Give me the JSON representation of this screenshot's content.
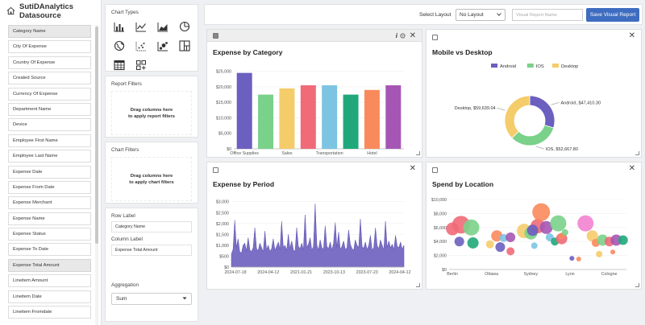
{
  "app": {
    "title": "SutiDAnalytics Datasource"
  },
  "fields": [
    {
      "label": "Category Name",
      "hl": true
    },
    {
      "label": "City Of Expense"
    },
    {
      "label": "Country Of Expense"
    },
    {
      "label": "Created Source"
    },
    {
      "label": "Currency Of Expense"
    },
    {
      "label": "Department Name"
    },
    {
      "label": "Device"
    },
    {
      "label": "Employee First Name"
    },
    {
      "label": "Employee Last Name"
    },
    {
      "label": "Expense Date"
    },
    {
      "label": "Expense From Date"
    },
    {
      "label": "Expense Merchant"
    },
    {
      "label": "Expense Name"
    },
    {
      "label": "Expense Status"
    },
    {
      "label": "Expense To Date"
    },
    {
      "label": "Expense Total Amount",
      "hl": true
    },
    {
      "label": "Lineitem Amount"
    },
    {
      "label": "Lineitem Date"
    },
    {
      "label": "Lineitem Fromdate"
    }
  ],
  "config": {
    "chart_types_title": "Chart Types",
    "chart_type_icons": [
      "bar-chart-icon",
      "line-chart-icon",
      "area-chart-icon",
      "pie-chart-icon",
      "globe-map-icon",
      "scatter-chart-icon",
      "bubble-chart-icon",
      "treemap-icon",
      "table-icon",
      "widget-grid-icon"
    ],
    "report_filters_title": "Report Filters",
    "report_filters_drop_l1": "Drag columns here",
    "report_filters_drop_l2": "to apply report filters",
    "chart_filters_title": "Chart Filters",
    "chart_filters_drop_l1": "Drag columns here",
    "chart_filters_drop_l2": "to apply chart filters",
    "row_label_title": "Row Label",
    "row_label_value": "Category Name",
    "column_label_title": "Column Label",
    "column_label_value": "Expense Total Amount",
    "aggregation_title": "Aggregation",
    "aggregation_value": "Sum"
  },
  "toolbar": {
    "select_layout_label": "Select Layout",
    "layout_value": "No Layout",
    "report_name_placeholder": "Visual Report Name",
    "save_label": "Save Visual Report"
  },
  "charts": {
    "category_title": "Expense by Category",
    "device_title": "Mobile vs Desktop",
    "period_title": "Expense by Period",
    "location_title": "Spend by Location"
  },
  "chart_data": [
    {
      "type": "bar",
      "title": "Expense by Category",
      "categories": [
        "Office Supplies",
        "",
        "Sales",
        "",
        "Transportation",
        "",
        "Hotel",
        ""
      ],
      "tick_labels": [
        "Office Supplies",
        "Sales",
        "Transportation",
        "Hotel"
      ],
      "values": [
        24500,
        17500,
        19500,
        20500,
        20500,
        17500,
        19000,
        20500
      ],
      "colors": [
        "#6b5fc0",
        "#7ad18a",
        "#f5cc6a",
        "#f06a78",
        "#7cc4e2",
        "#20a87a",
        "#f98a5c",
        "#a556b4"
      ],
      "y_ticks": [
        "$0",
        "$5,000",
        "$10,000",
        "$15,000",
        "$20,000",
        "$25,000"
      ],
      "ylim": [
        0,
        27000
      ]
    },
    {
      "type": "pie",
      "title": "Mobile vs Desktop",
      "slices": [
        {
          "name": "Android",
          "value": 47410.3,
          "label": "Android, $47,410.30",
          "color": "#6b5fc0"
        },
        {
          "name": "IOS",
          "value": 52667.8,
          "label": "IOS, $52,667.80",
          "color": "#7ad18a"
        },
        {
          "name": "Desktop",
          "value": 59639.04,
          "label": "Desktop, $59,639.04",
          "color": "#f5cc6a"
        }
      ],
      "legend_placement": "top"
    },
    {
      "type": "area",
      "title": "Expense by Period",
      "x_ticks": [
        "2024-07-18",
        "2024-04-12",
        "2021-01-21",
        "2023-10-13",
        "2023-07-23",
        "2024-04-12"
      ],
      "y_ticks": [
        "$0",
        "$500",
        "$1,000",
        "$1,500",
        "$2,000",
        "$2,500",
        "$3,000"
      ],
      "ylim": [
        0,
        3100
      ],
      "color": "#7a6fc4",
      "values": [
        600,
        820,
        2150,
        900,
        1300,
        700,
        650,
        1000,
        1100,
        750,
        1350,
        800,
        700,
        900,
        1800,
        850,
        750,
        1100,
        900,
        700,
        1650,
        800,
        1000,
        720,
        850,
        1300,
        780,
        950,
        1150,
        800,
        2100,
        900,
        1000,
        760,
        1500,
        850,
        1200,
        800,
        720,
        1800,
        950,
        850,
        1100,
        780,
        2400,
        900,
        1050,
        1350,
        780,
        950,
        2900,
        1000,
        780,
        1250,
        900,
        820,
        1900,
        950,
        850,
        1150,
        780,
        1100,
        2050,
        900,
        1600,
        820,
        950,
        1200,
        800,
        900,
        1700,
        1050,
        850,
        780,
        1250,
        1000,
        900,
        2200,
        950,
        860,
        1150,
        800,
        1000,
        1450,
        780,
        900,
        1800,
        980,
        840,
        1250,
        1000,
        800,
        2100,
        900,
        1200,
        880,
        1050,
        800,
        1450,
        950,
        900,
        1150,
        820,
        1000
      ]
    },
    {
      "type": "scatter",
      "title": "Spend by Location",
      "x_ticks": [
        "Berlin",
        "Ottawa",
        "Sydney",
        "Lyon",
        "Cologne"
      ],
      "y_ticks": [
        "$0",
        "$2,000",
        "$4,000",
        "$6,000",
        "$8,000",
        "$10,000"
      ],
      "ylim": [
        0,
        10000
      ],
      "points": [
        {
          "x": 0.1,
          "y": 5800,
          "r": 8,
          "c": "#f06a78"
        },
        {
          "x": 0.35,
          "y": 6400,
          "r": 11,
          "c": "#f06a78"
        },
        {
          "x": 0.65,
          "y": 6000,
          "r": 10,
          "c": "#7ad18a"
        },
        {
          "x": 0.3,
          "y": 4000,
          "r": 6,
          "c": "#6b5fc0"
        },
        {
          "x": 0.7,
          "y": 3800,
          "r": 7,
          "c": "#20a87a"
        },
        {
          "x": 1.4,
          "y": 4800,
          "r": 7,
          "c": "#f98a5c"
        },
        {
          "x": 1.6,
          "y": 4500,
          "r": 5,
          "c": "#7cc4e2"
        },
        {
          "x": 1.8,
          "y": 4600,
          "r": 6,
          "c": "#a556b4"
        },
        {
          "x": 1.2,
          "y": 3600,
          "r": 5,
          "c": "#f5cc6a"
        },
        {
          "x": 1.5,
          "y": 3200,
          "r": 6,
          "c": "#6b5fc0"
        },
        {
          "x": 1.8,
          "y": 2600,
          "r": 5,
          "c": "#f06a78"
        },
        {
          "x": 2.2,
          "y": 5500,
          "r": 9,
          "c": "#f5cc6a"
        },
        {
          "x": 2.4,
          "y": 5200,
          "r": 8,
          "c": "#7ad18a"
        },
        {
          "x": 2.5,
          "y": 3400,
          "r": 4,
          "c": "#7cc4e2"
        },
        {
          "x": 2.6,
          "y": 6200,
          "r": 9,
          "c": "#f06a78"
        },
        {
          "x": 2.7,
          "y": 8200,
          "r": 11,
          "c": "#f98a5c"
        },
        {
          "x": 2.85,
          "y": 6000,
          "r": 8,
          "c": "#a556b4"
        },
        {
          "x": 2.45,
          "y": 5600,
          "r": 7,
          "c": "#6b5fc0"
        },
        {
          "x": 2.95,
          "y": 4600,
          "r": 5,
          "c": "#7cc4e2"
        },
        {
          "x": 3.1,
          "y": 4000,
          "r": 5,
          "c": "#20a87a"
        },
        {
          "x": 3.2,
          "y": 6600,
          "r": 10,
          "c": "#7ad18a"
        },
        {
          "x": 3.3,
          "y": 4400,
          "r": 7,
          "c": "#f06a78"
        },
        {
          "x": 3.3,
          "y": 4800,
          "r": 4,
          "c": "#f98a5c"
        },
        {
          "x": 3.4,
          "y": 5300,
          "r": 4,
          "c": "#7ad18a"
        },
        {
          "x": 4.0,
          "y": 6600,
          "r": 10,
          "c": "#f382d0"
        },
        {
          "x": 4.2,
          "y": 4800,
          "r": 7,
          "c": "#f5cc6a"
        },
        {
          "x": 4.3,
          "y": 3800,
          "r": 5,
          "c": "#f98a5c"
        },
        {
          "x": 4.5,
          "y": 4200,
          "r": 7,
          "c": "#7ad18a"
        },
        {
          "x": 4.7,
          "y": 4000,
          "r": 6,
          "c": "#f06a78"
        },
        {
          "x": 4.9,
          "y": 4200,
          "r": 7,
          "c": "#a556b4"
        },
        {
          "x": 5.1,
          "y": 4200,
          "r": 6,
          "c": "#20a87a"
        },
        {
          "x": 4.4,
          "y": 2200,
          "r": 4,
          "c": "#f5cc6a"
        },
        {
          "x": 4.8,
          "y": 2500,
          "r": 3,
          "c": "#f98a5c"
        },
        {
          "x": 3.6,
          "y": 1600,
          "r": 3,
          "c": "#6b5fc0"
        },
        {
          "x": 3.8,
          "y": 1500,
          "r": 3,
          "c": "#f98a5c"
        }
      ]
    }
  ]
}
